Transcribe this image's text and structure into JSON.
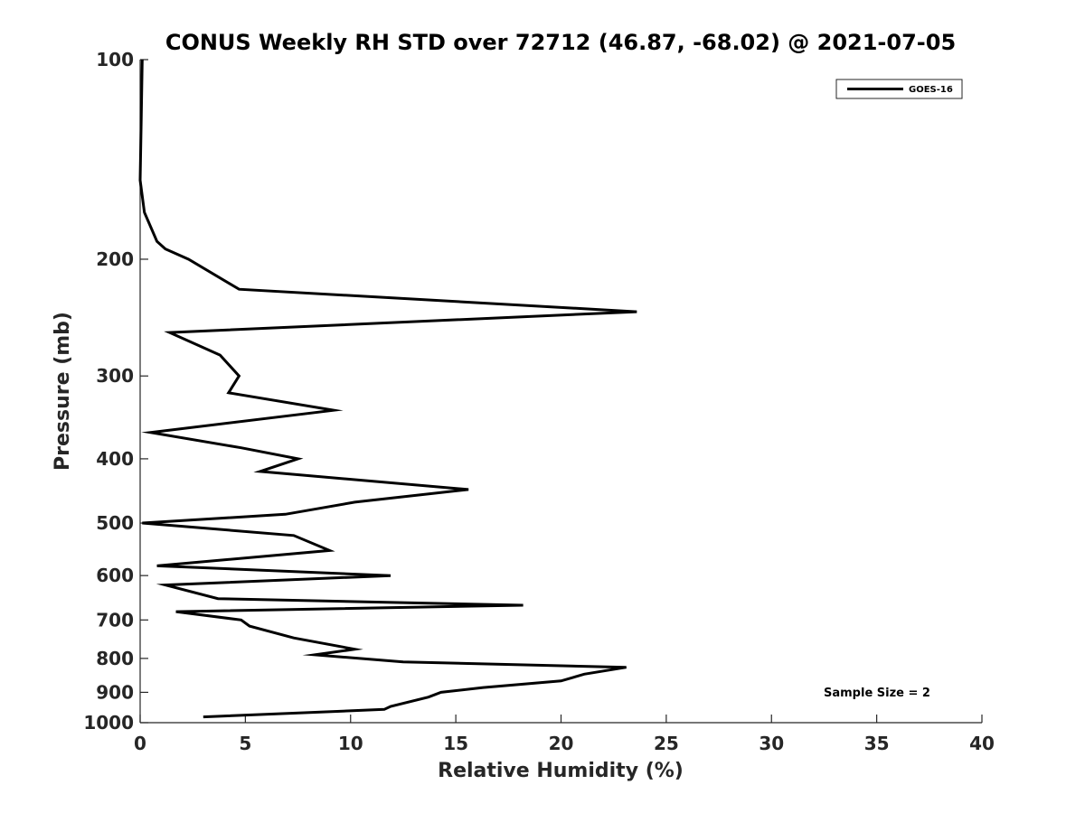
{
  "chart_data": {
    "type": "line",
    "title": "CONUS Weekly RH STD over 72712 (46.87, -68.02) @ 2021-07-05",
    "xlabel": "Relative Humidity (%)",
    "ylabel": "Pressure (mb)",
    "xlim": [
      0,
      40
    ],
    "ylim": [
      100,
      1000
    ],
    "yscale": "log",
    "y_reversed": true,
    "grid": false,
    "xticks": [
      0,
      5,
      10,
      15,
      20,
      25,
      30,
      35,
      40
    ],
    "xtick_labels": [
      "0",
      "5",
      "10",
      "15",
      "20",
      "25",
      "30",
      "35",
      "40"
    ],
    "yticks": [
      100,
      200,
      300,
      400,
      500,
      600,
      700,
      800,
      900,
      1000
    ],
    "ytick_labels": [
      "100",
      "200",
      "300",
      "400",
      "500",
      "600",
      "700",
      "800",
      "900",
      "1000"
    ],
    "legend": {
      "position": "top-right",
      "entries": [
        "GOES-16"
      ]
    },
    "annotation": "Sample Size = 2",
    "series": [
      {
        "name": "GOES-16",
        "color": "#000000",
        "x": [
          0.1,
          0.05,
          0.0,
          0.2,
          0.8,
          1.2,
          2.3,
          4.7,
          23.6,
          1.4,
          3.8,
          4.7,
          4.2,
          9.2,
          0.5,
          4.8,
          7.5,
          5.7,
          15.6,
          10.2,
          6.9,
          0.1,
          7.3,
          9.0,
          0.8,
          11.9,
          1.2,
          3.7,
          18.2,
          1.7,
          4.8,
          5.2,
          7.3,
          10.2,
          8.3,
          12.5,
          23.1,
          21.1,
          20.0,
          16.3,
          14.3,
          13.7,
          11.9,
          11.6,
          3.0
        ],
        "y": [
          100,
          123,
          152,
          170,
          188,
          193,
          200,
          222,
          240,
          258,
          279,
          300,
          318,
          338,
          365,
          385,
          400,
          418,
          445,
          465,
          485,
          500,
          522,
          550,
          580,
          600,
          620,
          650,
          665,
          680,
          700,
          715,
          745,
          775,
          790,
          810,
          825,
          845,
          865,
          885,
          900,
          915,
          945,
          955,
          980
        ]
      }
    ]
  }
}
